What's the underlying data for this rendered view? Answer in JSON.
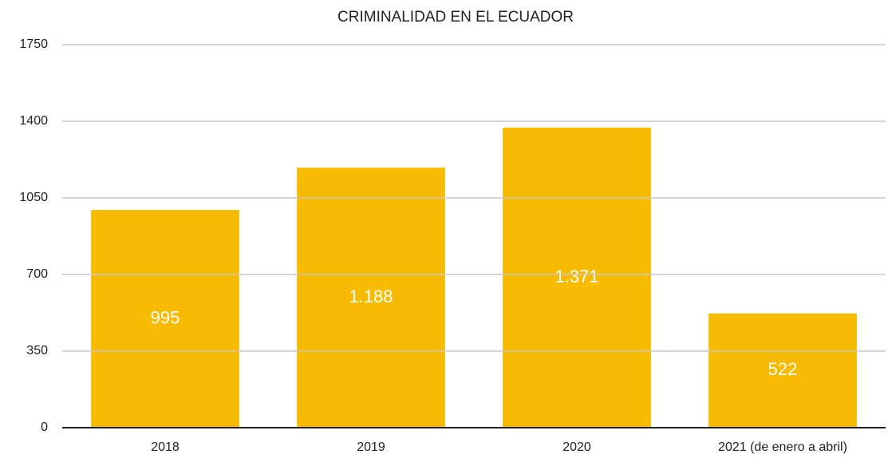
{
  "chart_data": {
    "type": "bar",
    "title": "CRIMINALIDAD EN EL ECUADOR",
    "categories": [
      "2018",
      "2019",
      "2020",
      "2021 (de enero a abril)"
    ],
    "values": [
      995,
      1188,
      1371,
      522
    ],
    "value_labels": [
      "995",
      "1.188",
      "1.371",
      "522"
    ],
    "color": "#f6bb02",
    "ylim": [
      0,
      1750
    ],
    "yticks": [
      0,
      350,
      700,
      1050,
      1400,
      1750
    ],
    "grid": true
  }
}
